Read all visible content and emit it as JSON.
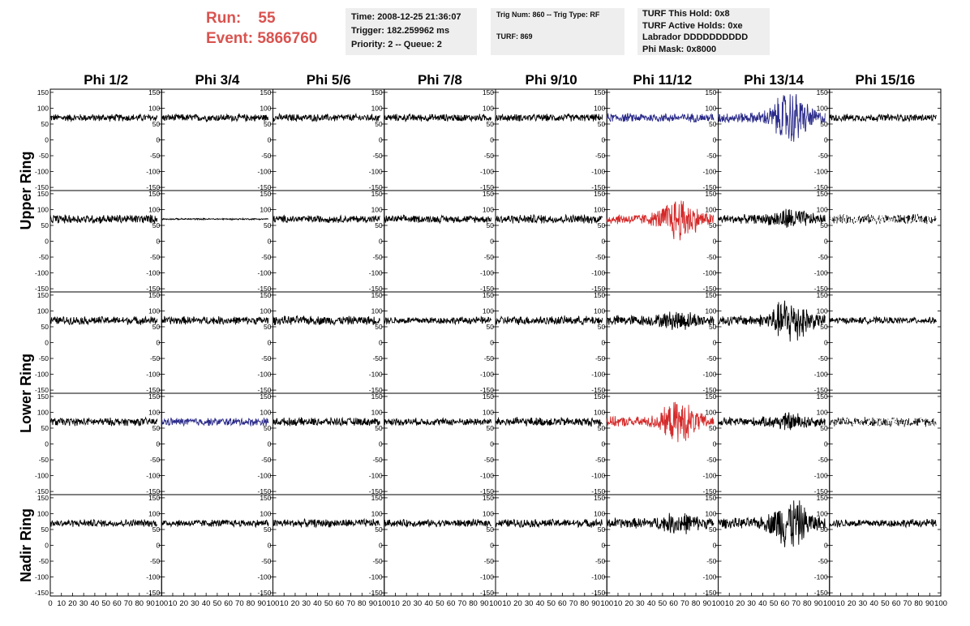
{
  "header": {
    "run_label": "Run:",
    "run_value": "55",
    "event_label": "Event:",
    "event_value": "5866760"
  },
  "info_time": {
    "line1": "Time: 2008-12-25 21:36:07",
    "line2": "Trigger: 182.259962 ms",
    "line3": "Priority: 2 -- Queue: 2"
  },
  "info_trig": {
    "line1": "Trig Num: 860 -- Trig Type: RF",
    "line2": "TURF: 869"
  },
  "info_turf": {
    "line1": "TURF This Hold: 0x8",
    "line2": "TURF Active Holds: 0xe",
    "line3": "Labrador DDDDDDDDDD",
    "line4": "Phi Mask: 0x8000"
  },
  "colors": {
    "header_red": "#d9534f",
    "trace_black": "#000000",
    "trace_blue": "#2a2a8a",
    "trace_red": "#d42a2a"
  },
  "chart_data": {
    "type": "line",
    "columns": [
      "Phi 1/2",
      "Phi 3/4",
      "Phi 5/6",
      "Phi 7/8",
      "Phi 9/10",
      "Phi 11/12",
      "Phi 13/14",
      "Phi 15/16"
    ],
    "rows": [
      "Upper Ring",
      "Upper Ring",
      "Lower Ring",
      "Lower Ring",
      "Nadir Ring"
    ],
    "row_labels": [
      {
        "text": "Upper Ring",
        "rows": [
          0,
          1
        ]
      },
      {
        "text": "Lower Ring",
        "rows": [
          2,
          3
        ]
      },
      {
        "text": "Nadir Ring",
        "rows": [
          4
        ]
      }
    ],
    "ylim": [
      -160,
      160
    ],
    "y_ticks": [
      -150,
      -100,
      -50,
      0,
      50,
      100,
      150
    ],
    "xlim": [
      0,
      100
    ],
    "x_ticks": [
      0,
      10,
      20,
      30,
      40,
      50,
      60,
      70,
      80,
      90,
      100
    ],
    "x_tick_labels": [
      "0",
      "10",
      "20",
      "30",
      "40",
      "50",
      "60",
      "70",
      "80",
      "90",
      "100"
    ],
    "waveform_x_range": [
      0,
      96
    ],
    "baseline": 70,
    "panels": [
      [
        {
          "color": "black",
          "noise": 10,
          "burst": 0
        },
        {
          "color": "black",
          "noise": 10,
          "burst": 0
        },
        {
          "color": "black",
          "noise": 10,
          "burst": 0
        },
        {
          "color": "black",
          "noise": 10,
          "burst": 0
        },
        {
          "color": "black",
          "noise": 10,
          "burst": 0
        },
        {
          "color": "blue",
          "noise": 12,
          "burst": 0
        },
        {
          "color": "blue",
          "noise": 14,
          "burst": 65
        },
        {
          "color": "black",
          "noise": 10,
          "burst": 0
        }
      ],
      [
        {
          "color": "black",
          "noise": 12,
          "burst": 0
        },
        {
          "color": "black",
          "noise": 2,
          "burst": 0
        },
        {
          "color": "black",
          "noise": 10,
          "burst": 0
        },
        {
          "color": "black",
          "noise": 10,
          "burst": 0
        },
        {
          "color": "black",
          "noise": 12,
          "burst": 0
        },
        {
          "color": "red",
          "noise": 14,
          "burst": 50
        },
        {
          "color": "black",
          "noise": 12,
          "burst": 20
        },
        {
          "color": "black",
          "noise": 13,
          "burst": 0,
          "dotted": true
        }
      ],
      [
        {
          "color": "black",
          "noise": 11,
          "burst": 0
        },
        {
          "color": "black",
          "noise": 11,
          "burst": 0
        },
        {
          "color": "black",
          "noise": 12,
          "burst": 0
        },
        {
          "color": "black",
          "noise": 10,
          "burst": 0
        },
        {
          "color": "black",
          "noise": 12,
          "burst": 0
        },
        {
          "color": "black",
          "noise": 14,
          "burst": 15
        },
        {
          "color": "black",
          "noise": 14,
          "burst": 55
        },
        {
          "color": "black",
          "noise": 9,
          "burst": 0
        }
      ],
      [
        {
          "color": "black",
          "noise": 11,
          "burst": 0
        },
        {
          "color": "blue",
          "noise": 11,
          "burst": 0
        },
        {
          "color": "black",
          "noise": 11,
          "burst": 0
        },
        {
          "color": "black",
          "noise": 10,
          "burst": 0
        },
        {
          "color": "black",
          "noise": 12,
          "burst": 0
        },
        {
          "color": "red",
          "noise": 14,
          "burst": 45
        },
        {
          "color": "black",
          "noise": 12,
          "burst": 15
        },
        {
          "color": "black",
          "noise": 13,
          "burst": 0,
          "dotted": true
        }
      ],
      [
        {
          "color": "black",
          "noise": 10,
          "burst": 0
        },
        {
          "color": "black",
          "noise": 10,
          "burst": 0
        },
        {
          "color": "black",
          "noise": 11,
          "burst": 0
        },
        {
          "color": "black",
          "noise": 10,
          "burst": 0
        },
        {
          "color": "black",
          "noise": 11,
          "burst": 0
        },
        {
          "color": "black",
          "noise": 14,
          "burst": 18
        },
        {
          "color": "black",
          "noise": 14,
          "burst": 60
        },
        {
          "color": "black",
          "noise": 11,
          "burst": 0
        }
      ]
    ]
  }
}
